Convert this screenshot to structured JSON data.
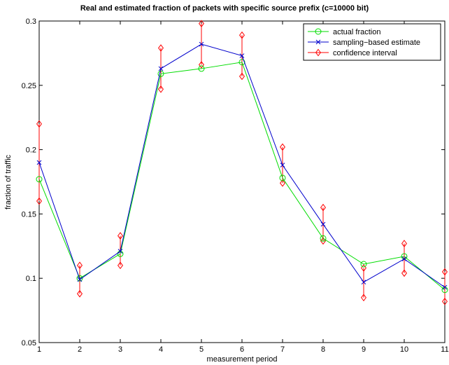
{
  "chart_data": {
    "type": "line",
    "title": "Real and estimated fraction of packets with specific source prefix (c=10000 bit)",
    "xlabel": "measurement period",
    "ylabel": "fraction of traffic",
    "xlim": [
      1,
      11
    ],
    "ylim": [
      0.05,
      0.3
    ],
    "x_ticks": [
      1,
      2,
      3,
      4,
      5,
      6,
      7,
      8,
      9,
      10,
      11
    ],
    "y_ticks": [
      0.05,
      0.1,
      0.15,
      0.2,
      0.25,
      0.3
    ],
    "y_tick_labels": [
      "0.05",
      "0.1",
      "0.15",
      "0.2",
      "0.25",
      "0.3"
    ],
    "grid": false,
    "legend_position": "top-right",
    "x": [
      1,
      2,
      3,
      4,
      5,
      6,
      7,
      8,
      9,
      10,
      11
    ],
    "series": [
      {
        "name": "actual fraction",
        "color": "#00dd00",
        "marker": "circle",
        "values": [
          0.177,
          0.1,
          0.119,
          0.259,
          0.263,
          0.268,
          0.178,
          0.131,
          0.111,
          0.117,
          0.091
        ]
      },
      {
        "name": "sampling−based estimate",
        "color": "#0000cc",
        "marker": "x",
        "values": [
          0.19,
          0.099,
          0.121,
          0.263,
          0.282,
          0.273,
          0.188,
          0.142,
          0.097,
          0.115,
          0.093
        ]
      }
    ],
    "confidence_interval": {
      "name": "confidence interval",
      "color": "#ff0000",
      "marker": "diamond",
      "lower": [
        0.16,
        0.088,
        0.11,
        0.247,
        0.266,
        0.257,
        0.174,
        0.129,
        0.085,
        0.104,
        0.082
      ],
      "upper": [
        0.22,
        0.11,
        0.133,
        0.279,
        0.298,
        0.289,
        0.202,
        0.155,
        0.108,
        0.127,
        0.105
      ]
    }
  }
}
